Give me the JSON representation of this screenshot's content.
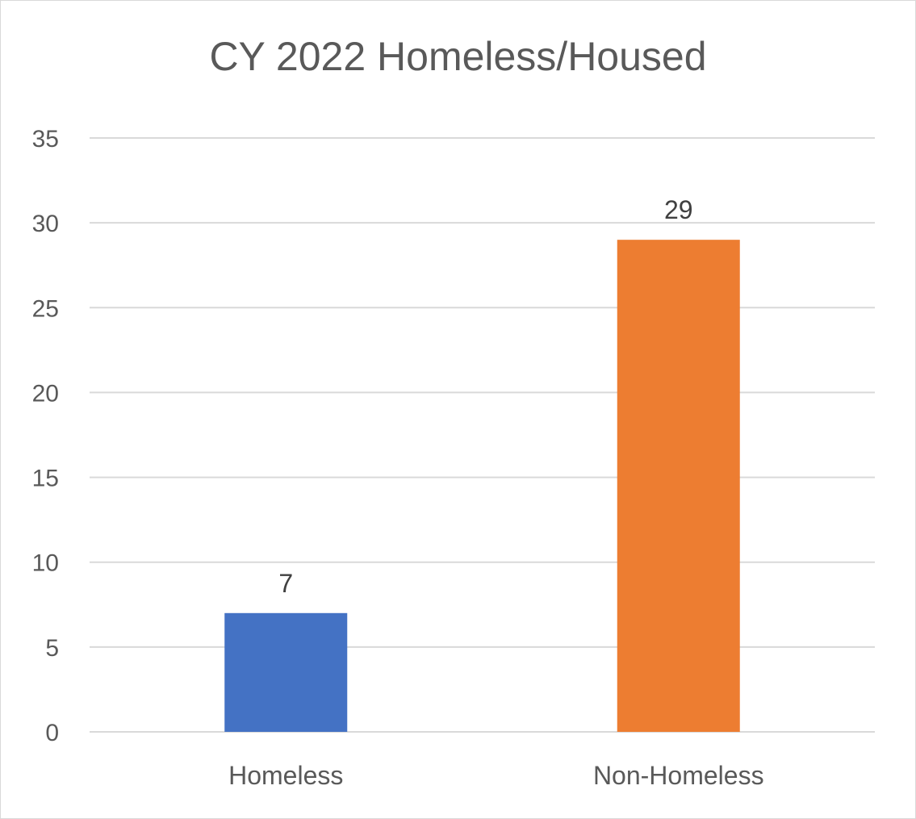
{
  "chart_data": {
    "type": "bar",
    "title": "CY 2022 Homeless/Housed",
    "xlabel": "",
    "ylabel": "",
    "categories": [
      "Homeless",
      "Non-Homeless"
    ],
    "values": [
      7,
      29
    ],
    "colors": [
      "#4472C4",
      "#ED7D31"
    ],
    "ylim": [
      0,
      35
    ],
    "yticks": [
      0,
      5,
      10,
      15,
      20,
      25,
      30,
      35
    ],
    "grid": true,
    "data_labels": true
  }
}
